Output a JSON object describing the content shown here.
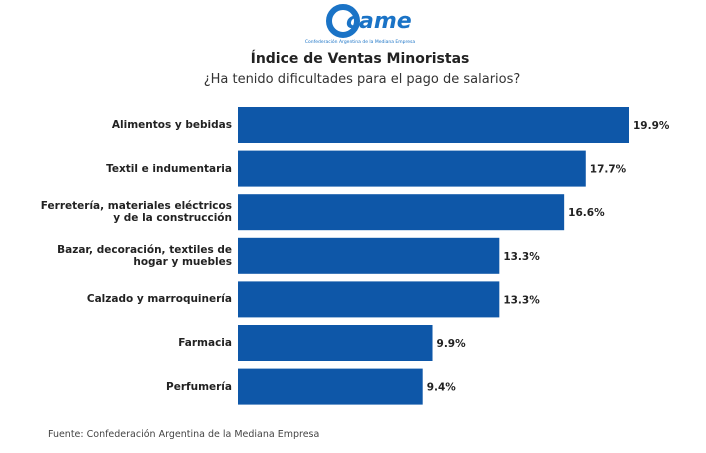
{
  "logo": {
    "text": "came",
    "caption": "Confederación Argentina de la Mediana Empresa"
  },
  "chart_data": {
    "type": "bar",
    "orientation": "horizontal",
    "title": "Índice de Ventas Minoristas",
    "subtitle": "¿Ha tenido dificultades para el pago de salarios?",
    "categories": [
      "Alimentos y bebidas",
      "Textil e indumentaria",
      "Ferretería, materiales eléctricos y de la construcción",
      "Bazar, decoración, textiles de hogar y muebles",
      "Calzado y marroquinería",
      "Farmacia",
      "Perfumería"
    ],
    "values": [
      19.9,
      17.7,
      16.6,
      13.3,
      13.3,
      9.9,
      9.4
    ],
    "value_labels": [
      "19.9%",
      "17.7%",
      "16.6%",
      "13.3%",
      "13.3%",
      "9.9%",
      "9.4%"
    ],
    "color": "#0e57a8",
    "source": "Fuente: Confederación Argentina de la Mediana Empresa"
  }
}
